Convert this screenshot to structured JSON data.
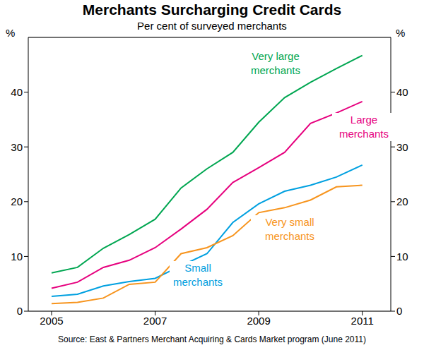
{
  "chart_data": {
    "type": "line",
    "title": "Merchants Surcharging Credit Cards",
    "subtitle": "Per cent of surveyed merchants",
    "y_label": "%",
    "source": "Source: East & Partners Merchant Acquiring & Cards Market program (June 2011)",
    "x": [
      2005,
      2005.5,
      2006,
      2006.5,
      2007,
      2007.5,
      2008,
      2008.5,
      2009,
      2009.5,
      2010,
      2010.5,
      2011
    ],
    "series": [
      {
        "name": "Very large merchants",
        "color": "#00a651",
        "values": [
          7,
          8,
          11.5,
          14,
          16.8,
          22.5,
          26,
          29,
          34.5,
          39,
          41.8,
          44.3,
          46.7
        ]
      },
      {
        "name": "Large merchants",
        "color": "#e6007e",
        "values": [
          4.2,
          5.3,
          8,
          9.3,
          11.6,
          15,
          18.6,
          23.5,
          26.2,
          29,
          34.3,
          36.2,
          38.3
        ]
      },
      {
        "name": "Small merchants",
        "color": "#00a0e0",
        "values": [
          2.7,
          3.1,
          4.6,
          5.4,
          6,
          8.3,
          10.5,
          16.2,
          19.6,
          21.9,
          23,
          24.5,
          26.7
        ]
      },
      {
        "name": "Very small merchants",
        "color": "#f7941d",
        "values": [
          1.4,
          1.6,
          2.4,
          4.9,
          5.3,
          10.5,
          11.6,
          13.8,
          18,
          18.9,
          20.3,
          22.7,
          23
        ]
      }
    ],
    "xlim": [
      2004.55,
      2011.55
    ],
    "xticks": [
      2005,
      2007,
      2009,
      2011
    ],
    "ylim": [
      0,
      50
    ],
    "yticks": [
      0,
      10,
      20,
      30,
      40
    ],
    "grid": true
  }
}
